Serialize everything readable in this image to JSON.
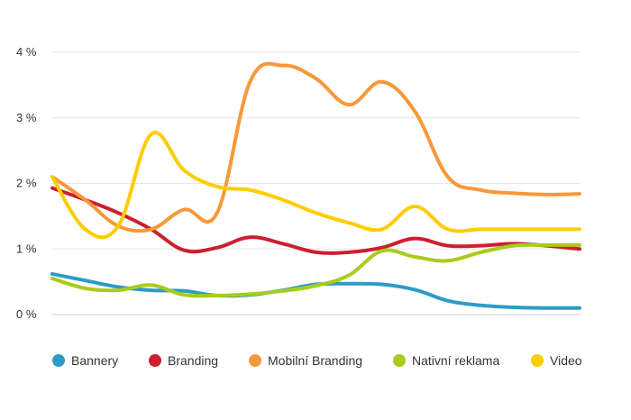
{
  "chart_data": {
    "type": "line",
    "title": "",
    "xlabel": "",
    "ylabel": "",
    "ylim": [
      0,
      4
    ],
    "x": [
      1,
      2,
      3,
      4,
      5,
      6,
      7,
      8,
      9,
      10,
      11,
      12,
      13,
      14,
      15,
      16,
      17
    ],
    "y_ticks": [
      {
        "value": 0,
        "label": "0 %"
      },
      {
        "value": 1,
        "label": "1 %"
      },
      {
        "value": 2,
        "label": "2 %"
      },
      {
        "value": 3,
        "label": "3 %"
      },
      {
        "value": 4,
        "label": "4 %"
      }
    ],
    "grid": true,
    "legend_position": "bottom",
    "series": [
      {
        "name": "Bannery",
        "color": "#2e9bc6",
        "values": [
          0.62,
          0.52,
          0.42,
          0.37,
          0.36,
          0.29,
          0.3,
          0.37,
          0.46,
          0.47,
          0.46,
          0.38,
          0.21,
          0.14,
          0.11,
          0.1,
          0.1
        ]
      },
      {
        "name": "Branding",
        "color": "#cc1f2f",
        "values": [
          1.93,
          1.75,
          1.55,
          1.3,
          0.98,
          1.02,
          1.18,
          1.08,
          0.95,
          0.95,
          1.02,
          1.16,
          1.05,
          1.05,
          1.08,
          1.05,
          1.0
        ]
      },
      {
        "name": "Mobilní Branding",
        "color": "#f7983a",
        "values": [
          2.1,
          1.75,
          1.35,
          1.3,
          1.6,
          1.55,
          3.55,
          3.8,
          3.6,
          3.2,
          3.55,
          3.1,
          2.1,
          1.9,
          1.85,
          1.83,
          1.84
        ]
      },
      {
        "name": "Nativní reklama",
        "color": "#a8cc1a",
        "values": [
          0.55,
          0.4,
          0.37,
          0.45,
          0.3,
          0.29,
          0.31,
          0.36,
          0.44,
          0.6,
          0.97,
          0.88,
          0.82,
          0.95,
          1.05,
          1.06,
          1.06
        ]
      },
      {
        "name": "Video",
        "color": "#ffcc00",
        "values": [
          2.1,
          1.3,
          1.35,
          2.75,
          2.2,
          1.95,
          1.9,
          1.75,
          1.55,
          1.4,
          1.3,
          1.65,
          1.3,
          1.3,
          1.3,
          1.3,
          1.3
        ]
      }
    ]
  }
}
